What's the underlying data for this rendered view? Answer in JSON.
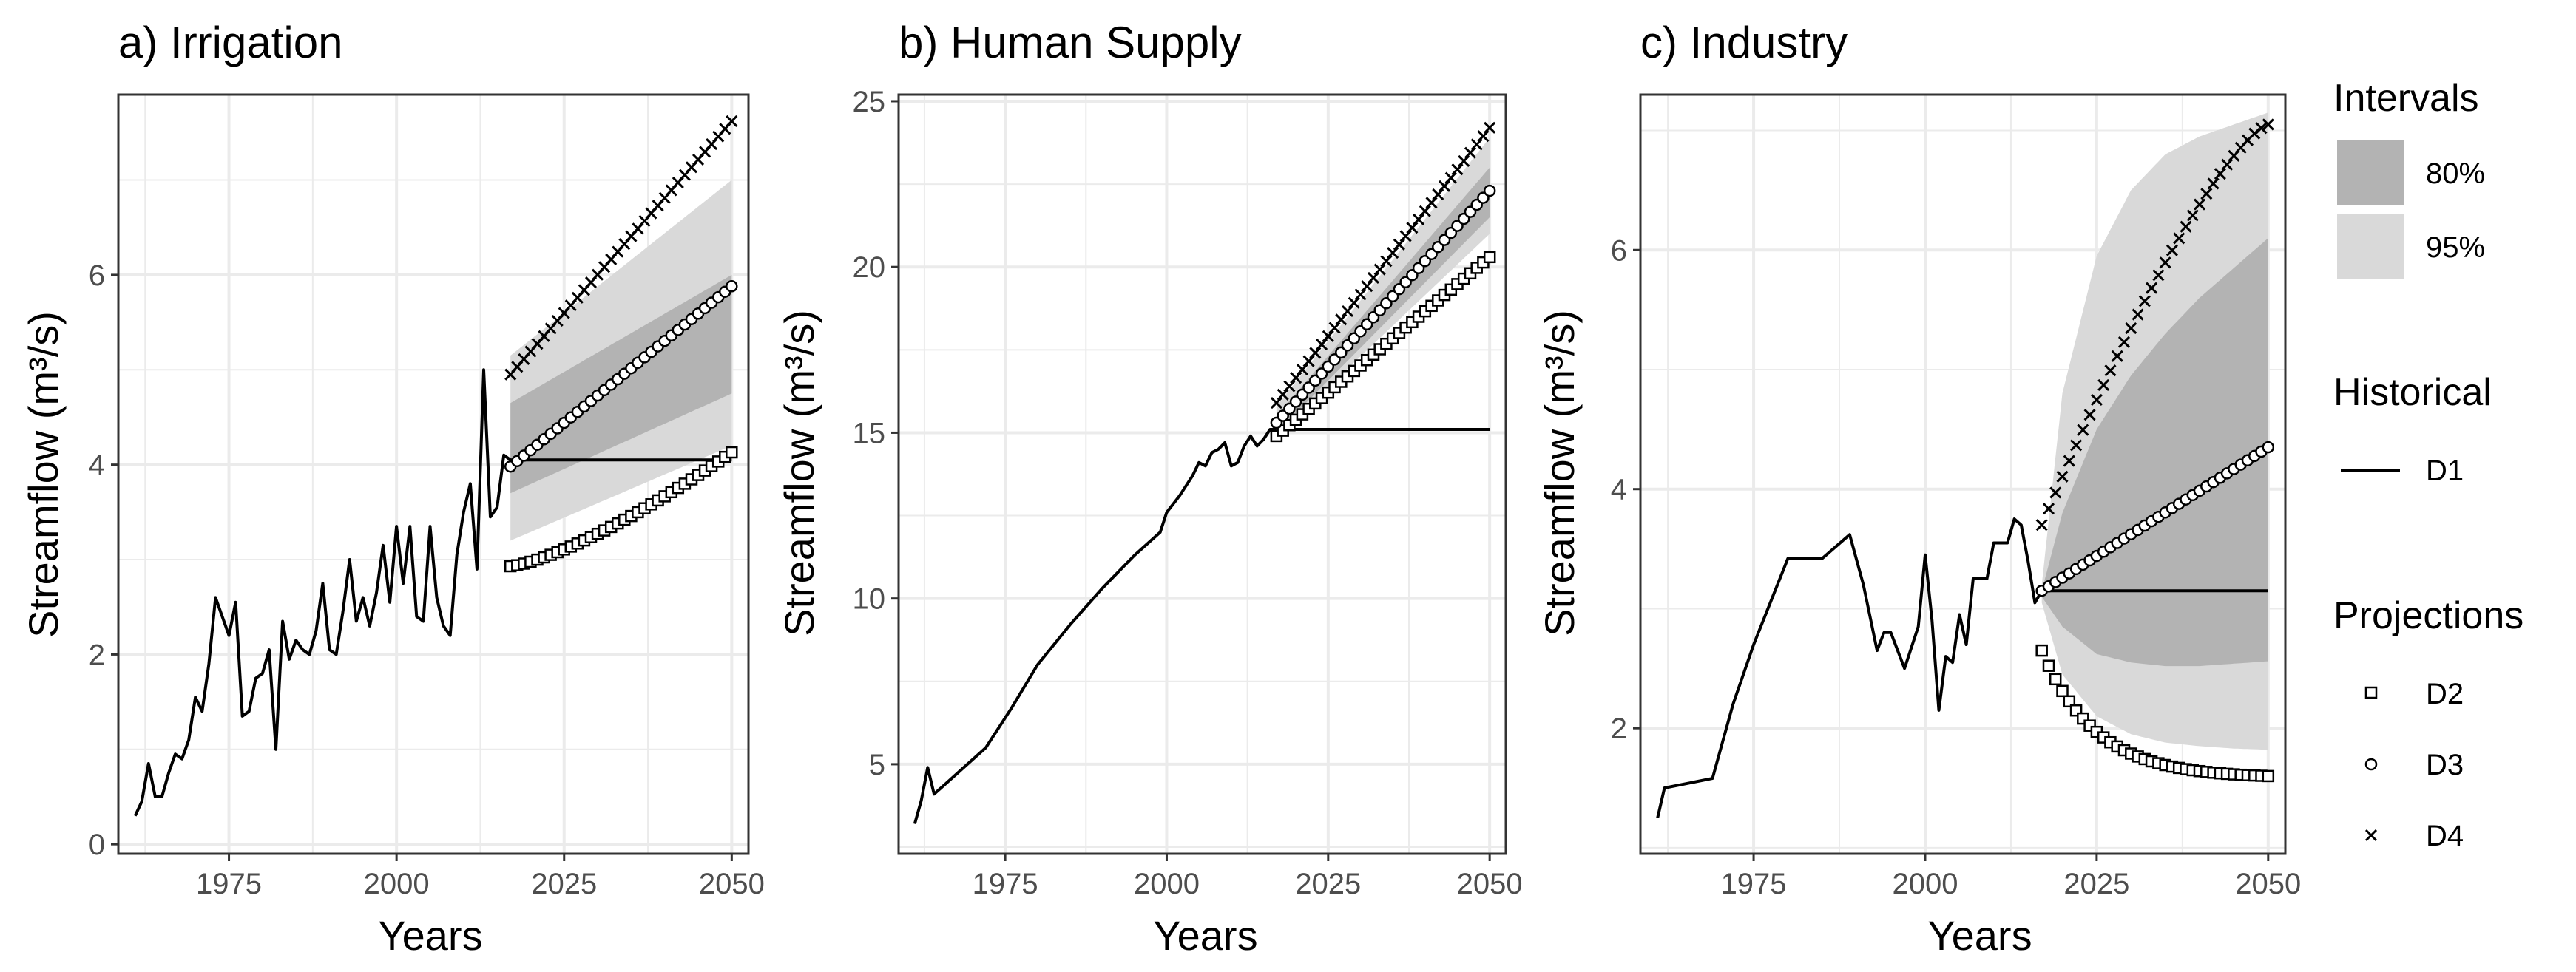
{
  "legend": {
    "intervals_title": "Intervals",
    "intervals": [
      {
        "label": "80%",
        "color": "#b3b3b3"
      },
      {
        "label": "95%",
        "color": "#d9d9d9"
      }
    ],
    "historical_title": "Historical",
    "historical": [
      {
        "label": "D1"
      }
    ],
    "projections_title": "Projections",
    "projections": [
      {
        "label": "D2",
        "marker": "square"
      },
      {
        "label": "D3",
        "marker": "circle"
      },
      {
        "label": "D4",
        "marker": "cross"
      }
    ]
  },
  "colors": {
    "band80": "#b3b3b3",
    "band95": "#d9d9d9",
    "line": "#000000",
    "grid": "#ebebeb",
    "border": "#333333",
    "tick": "#4d4d4d"
  },
  "chart_data": [
    {
      "type": "line",
      "title": "a) Irrigation",
      "xlabel": "Years",
      "ylabel": "Streamflow (m³/s)",
      "xlim": [
        1958.5,
        2052.5
      ],
      "ylim": [
        -0.1,
        7.9
      ],
      "xticks": [
        1975,
        2000,
        2025,
        2050
      ],
      "yticks": [
        0,
        2,
        4,
        6
      ],
      "historical": {
        "name": "D1",
        "x": [
          1961,
          1962,
          1963,
          1964,
          1965,
          1966,
          1967,
          1968,
          1969,
          1970,
          1971,
          1972,
          1973,
          1974,
          1975,
          1976,
          1977,
          1978,
          1979,
          1980,
          1981,
          1982,
          1983,
          1984,
          1985,
          1986,
          1987,
          1988,
          1989,
          1990,
          1991,
          1992,
          1993,
          1994,
          1995,
          1996,
          1997,
          1998,
          1999,
          2000,
          2001,
          2002,
          2003,
          2004,
          2005,
          2006,
          2007,
          2008,
          2009,
          2010,
          2011,
          2012,
          2013,
          2014,
          2015,
          2016,
          2017
        ],
        "y": [
          0.3,
          0.45,
          0.85,
          0.5,
          0.5,
          0.75,
          0.95,
          0.9,
          1.1,
          1.55,
          1.4,
          1.9,
          2.6,
          2.4,
          2.2,
          2.55,
          1.35,
          1.4,
          1.75,
          1.8,
          2.05,
          1.0,
          2.35,
          1.95,
          2.15,
          2.05,
          2.0,
          2.25,
          2.75,
          2.05,
          2.0,
          2.45,
          3.0,
          2.35,
          2.6,
          2.3,
          2.65,
          3.15,
          2.55,
          3.35,
          2.75,
          3.35,
          2.4,
          2.35,
          3.35,
          2.6,
          2.3,
          2.2,
          3.05,
          3.5,
          3.8,
          2.9,
          5.0,
          3.45,
          3.55,
          4.1,
          4.05
        ]
      },
      "projections_x": [
        2017,
        2050
      ],
      "projections": [
        {
          "name": "D1",
          "from": 4.05,
          "to": 4.05,
          "shape": "linear"
        },
        {
          "name": "D2",
          "from": 2.93,
          "to": 4.13,
          "shape": "convex"
        },
        {
          "name": "D3",
          "from": 3.98,
          "to": 5.88,
          "shape": "linear"
        },
        {
          "name": "D4",
          "from": 4.95,
          "to": 7.62,
          "shape": "linear"
        }
      ],
      "bands": {
        "x": [
          2017,
          2050
        ],
        "upper95": [
          5.15,
          7.0
        ],
        "upper80": [
          4.65,
          6.0
        ],
        "lower80": [
          3.7,
          4.75
        ],
        "lower95": [
          3.2,
          4.2
        ]
      }
    },
    {
      "type": "line",
      "title": "b) Human Supply",
      "xlabel": "Years",
      "ylabel": "Streamflow (m³/s)",
      "xlim": [
        1958.5,
        2052.5
      ],
      "ylim": [
        2.3,
        25.2
      ],
      "xticks": [
        1975,
        2000,
        2025,
        2050
      ],
      "yticks": [
        5,
        10,
        15,
        20,
        25
      ],
      "historical": {
        "name": "D1",
        "x": [
          1961,
          1962,
          1963,
          1964,
          1968,
          1972,
          1976,
          1980,
          1985,
          1990,
          1995,
          1999,
          2000,
          2002,
          2004,
          2005,
          2006,
          2007,
          2008,
          2009,
          2010,
          2011,
          2012,
          2013,
          2014,
          2015,
          2016,
          2017
        ],
        "y": [
          3.2,
          3.9,
          4.9,
          4.1,
          4.8,
          5.5,
          6.7,
          8.0,
          9.2,
          10.3,
          11.3,
          12.0,
          12.6,
          13.1,
          13.7,
          14.1,
          14.0,
          14.4,
          14.5,
          14.7,
          14.0,
          14.1,
          14.6,
          14.9,
          14.6,
          14.8,
          15.1,
          15.1
        ]
      },
      "projections_x": [
        2017,
        2050
      ],
      "projections": [
        {
          "name": "D1",
          "from": 15.1,
          "to": 15.1,
          "shape": "linear"
        },
        {
          "name": "D2",
          "from": 14.9,
          "to": 20.3,
          "shape": "linear"
        },
        {
          "name": "D3",
          "from": 15.3,
          "to": 22.3,
          "shape": "linear"
        },
        {
          "name": "D4",
          "from": 15.9,
          "to": 24.2,
          "shape": "linear"
        }
      ],
      "bands": {
        "x": [
          2017,
          2050
        ],
        "upper95": [
          15.8,
          23.9
        ],
        "upper80": [
          15.5,
          23.0
        ],
        "lower80": [
          15.0,
          21.5
        ],
        "lower95": [
          14.9,
          21.0
        ]
      }
    },
    {
      "type": "line",
      "title": "c) Industry",
      "xlabel": "Years",
      "ylabel": "Streamflow (m³/s)",
      "xlim": [
        1958.5,
        2052.5
      ],
      "ylim": [
        0.95,
        7.3
      ],
      "xticks": [
        1975,
        2000,
        2025,
        2050
      ],
      "yticks": [
        2,
        4,
        6
      ],
      "historical": {
        "name": "D1",
        "x": [
          1961,
          1962,
          1969,
          1972,
          1975,
          1980,
          1985,
          1989,
          1991,
          1993,
          1994,
          1995,
          1997,
          1999,
          2000,
          2001,
          2002,
          2003,
          2004,
          2005,
          2006,
          2007,
          2009,
          2010,
          2012,
          2013,
          2014,
          2015,
          2016,
          2017
        ],
        "y": [
          1.25,
          1.5,
          1.58,
          2.2,
          2.7,
          3.42,
          3.42,
          3.62,
          3.2,
          2.65,
          2.8,
          2.8,
          2.5,
          2.85,
          3.45,
          2.9,
          2.15,
          2.6,
          2.55,
          2.95,
          2.7,
          3.25,
          3.25,
          3.55,
          3.55,
          3.75,
          3.7,
          3.4,
          3.05,
          3.15
        ]
      },
      "projections_x": [
        2017,
        2050
      ],
      "projections": [
        {
          "name": "D1",
          "from": 3.15,
          "to": 3.15,
          "shape": "linear"
        },
        {
          "name": "D2",
          "from": 2.65,
          "to": 1.6,
          "shape": "decay"
        },
        {
          "name": "D3",
          "from": 3.15,
          "to": 4.35,
          "shape": "linear"
        },
        {
          "name": "D4",
          "from": 3.7,
          "to": 7.05,
          "shape": "concave"
        }
      ],
      "bands": {
        "x": [
          2017,
          2020,
          2025,
          2030,
          2035,
          2040,
          2045,
          2050
        ],
        "upper95": [
          3.2,
          4.8,
          5.95,
          6.5,
          6.8,
          6.95,
          7.05,
          7.15
        ],
        "upper80": [
          3.15,
          3.8,
          4.5,
          4.95,
          5.3,
          5.6,
          5.85,
          6.1
        ],
        "lower80": [
          3.1,
          2.85,
          2.62,
          2.55,
          2.52,
          2.52,
          2.54,
          2.56
        ],
        "lower95": [
          3.05,
          2.45,
          2.1,
          1.95,
          1.88,
          1.85,
          1.83,
          1.82
        ]
      }
    }
  ]
}
